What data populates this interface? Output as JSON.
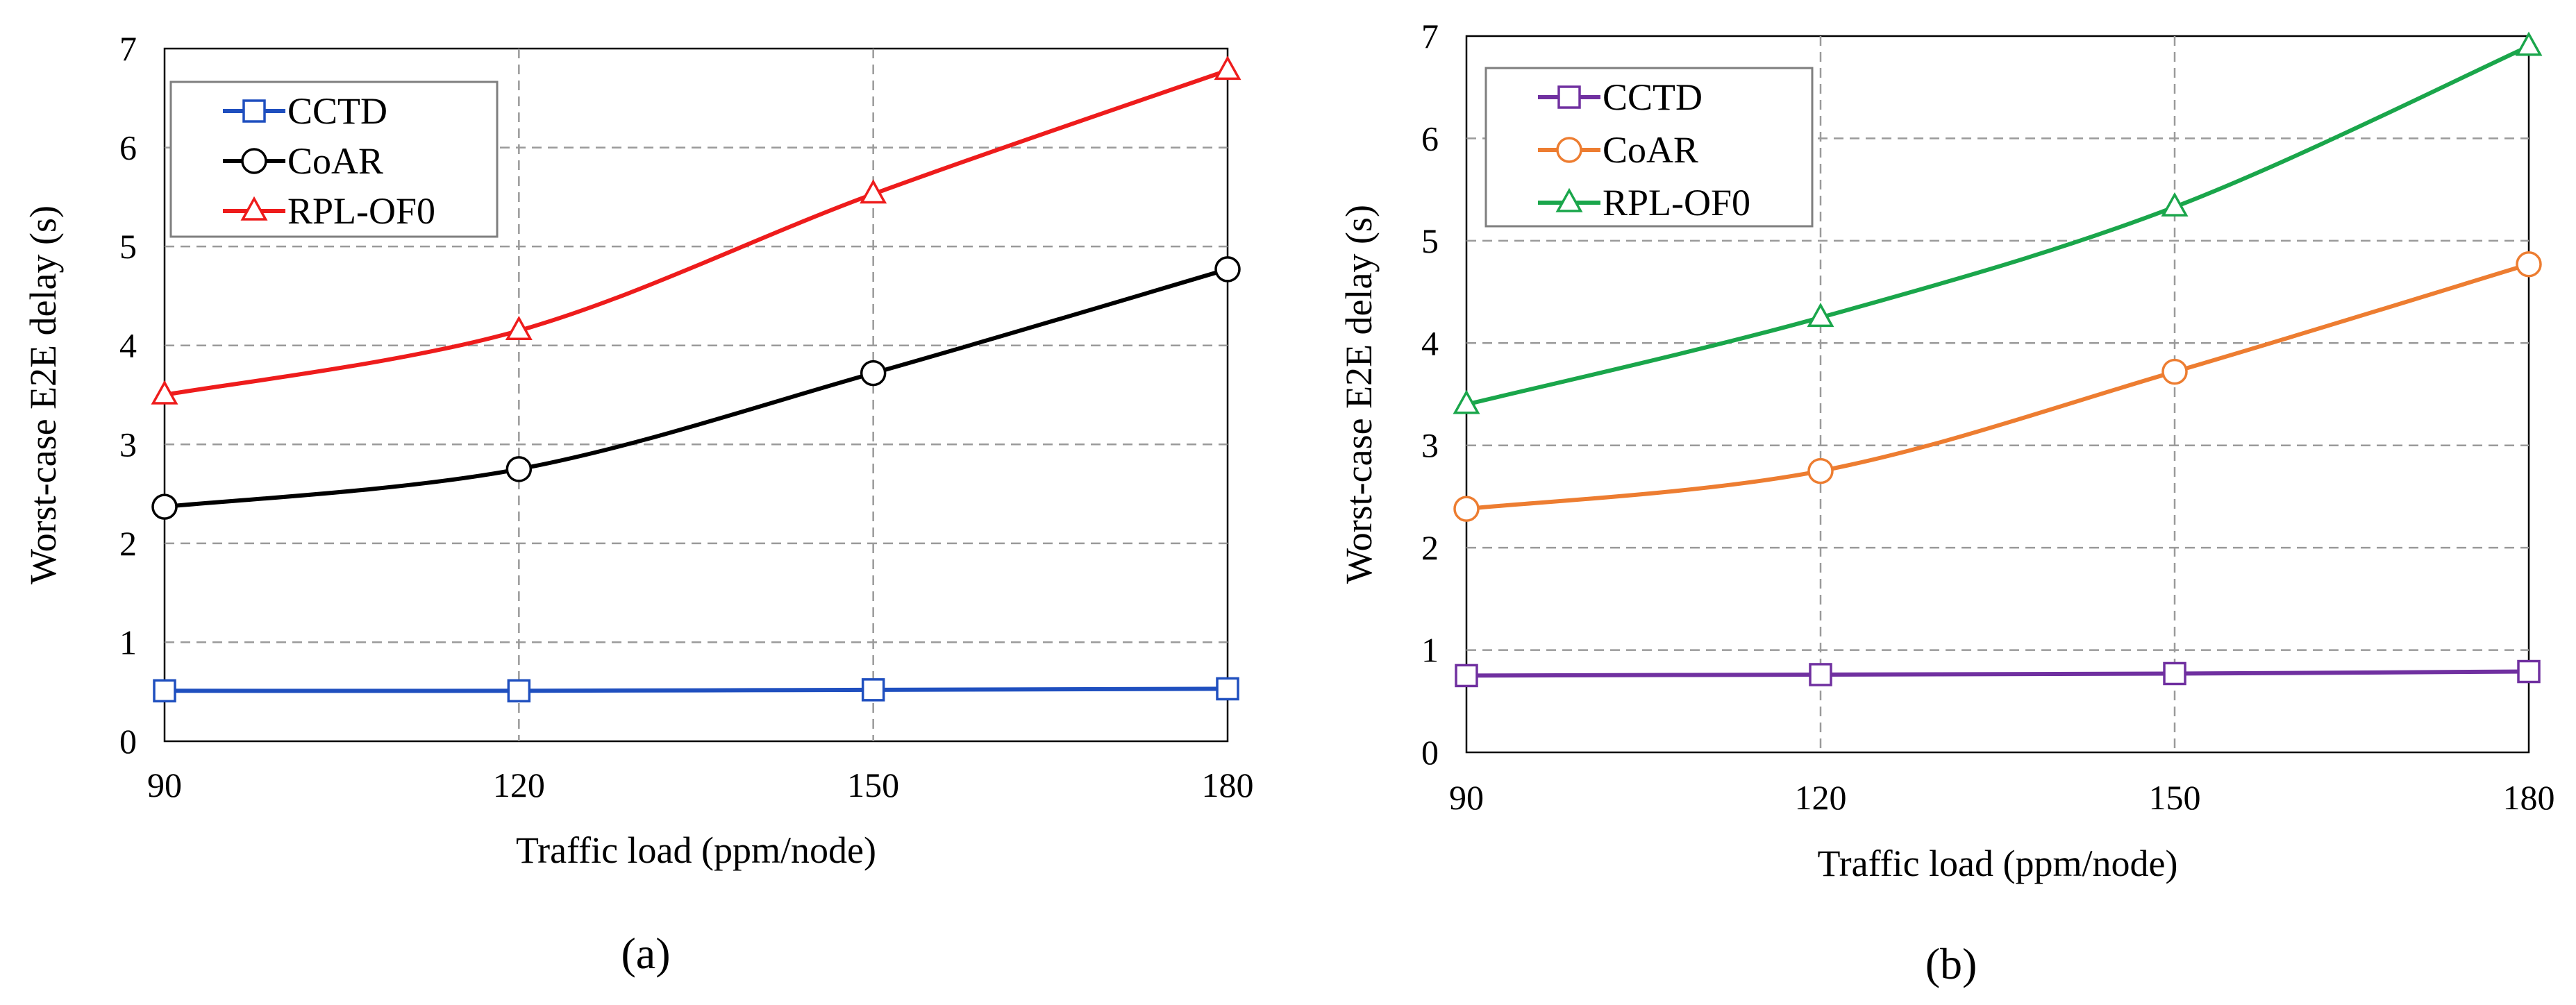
{
  "chart_data": [
    {
      "type": "line",
      "panel_label": "(a)",
      "xlabel": "Traffic load (ppm/node)",
      "ylabel": "Worst-case E2E delay (s)",
      "x": [
        90,
        120,
        150,
        180
      ],
      "x_tick_labels": [
        "90",
        "120",
        "150",
        "180"
      ],
      "y_tick_labels": [
        "0",
        "1",
        "2",
        "3",
        "4",
        "5",
        "6",
        "7"
      ],
      "xlim": [
        90,
        180
      ],
      "ylim": [
        0,
        7
      ],
      "grid": true,
      "legend_position": "top-left",
      "series": [
        {
          "name": "CCTD",
          "values": [
            0.51,
            0.51,
            0.52,
            0.53
          ],
          "color": "#1f4fbf",
          "marker": "square"
        },
        {
          "name": "CoAR",
          "values": [
            2.37,
            2.75,
            3.72,
            4.77
          ],
          "color": "#000000",
          "marker": "circle"
        },
        {
          "name": "RPL-OF0",
          "values": [
            3.5,
            4.15,
            5.53,
            6.78
          ],
          "color": "#ee1c1c",
          "marker": "triangle"
        }
      ]
    },
    {
      "type": "line",
      "panel_label": "(b)",
      "xlabel": "Traffic load (ppm/node)",
      "ylabel": "Worst-case E2E delay (s)",
      "x": [
        90,
        120,
        150,
        180
      ],
      "x_tick_labels": [
        "90",
        "120",
        "150",
        "180"
      ],
      "y_tick_labels": [
        "0",
        "1",
        "2",
        "3",
        "4",
        "5",
        "6",
        "7"
      ],
      "xlim": [
        90,
        180
      ],
      "ylim": [
        0,
        7
      ],
      "grid": true,
      "legend_position": "top-left",
      "series": [
        {
          "name": "CCTD",
          "values": [
            0.75,
            0.76,
            0.77,
            0.79
          ],
          "color": "#7030a0",
          "marker": "square"
        },
        {
          "name": "CoAR",
          "values": [
            2.38,
            2.75,
            3.72,
            4.77
          ],
          "color": "#ed7d31",
          "marker": "circle"
        },
        {
          "name": "RPL-OF0",
          "values": [
            3.4,
            4.25,
            5.33,
            6.9
          ],
          "color": "#1aa64b",
          "marker": "triangle"
        }
      ]
    }
  ]
}
